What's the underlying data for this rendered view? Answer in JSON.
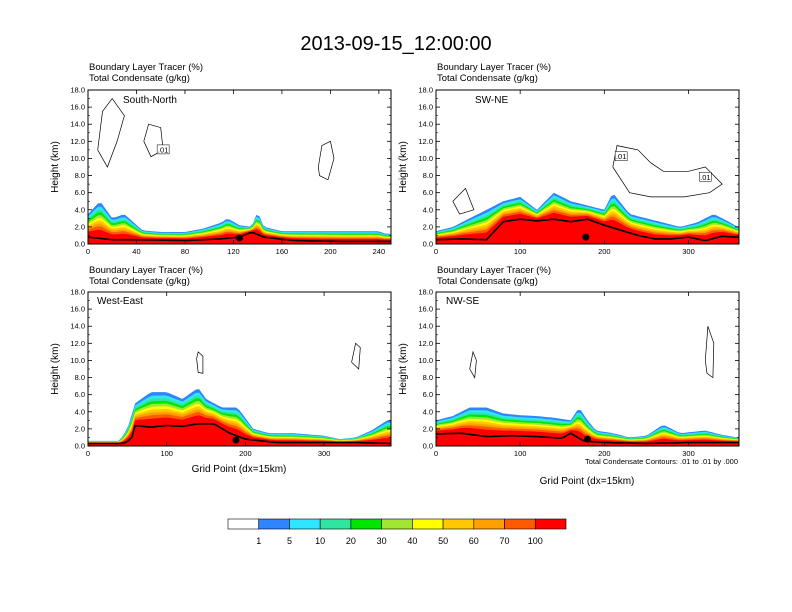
{
  "title": "2013-09-15_12:00:00",
  "field_labels": [
    "Boundary Layer Tracer   (%)",
    "Total Condensate   (g/kg)"
  ],
  "colors": {
    "palette": [
      "#ffffff",
      "#2f84ff",
      "#2ee6ff",
      "#2fe6a0",
      "#00e600",
      "#a0e632",
      "#ffff00",
      "#ffc800",
      "#ffa000",
      "#ff5a00",
      "#ff0000"
    ],
    "contour": "#000000",
    "terrain": "#000000"
  },
  "colorbar": {
    "labels": [
      "1",
      "5",
      "10",
      "20",
      "30",
      "40",
      "50",
      "60",
      "70",
      "100"
    ]
  },
  "contour_note": "Total Condensate Contours: .01 to .01 by .000",
  "chart_data": [
    {
      "type": "heatmap",
      "panel_label": "South-North",
      "ylabel": "Height (km)",
      "xlabel": "",
      "xlim": [
        0,
        250
      ],
      "ylim": [
        0,
        18
      ],
      "xticks": [
        "0",
        "40",
        "80",
        "120",
        "160",
        "200",
        "240"
      ],
      "yticks": [
        "0.0",
        "2.0",
        "4.0",
        "6.0",
        "8.0",
        "10.0",
        "12.0",
        "14.0",
        "16.0",
        "18.0"
      ],
      "contour_labels": [
        ".01"
      ],
      "plume": [
        [
          0,
          3.5
        ],
        [
          10,
          5
        ],
        [
          20,
          3
        ],
        [
          30,
          3.5
        ],
        [
          45,
          1.6
        ],
        [
          60,
          1.4
        ],
        [
          80,
          1.4
        ],
        [
          95,
          1.8
        ],
        [
          110,
          2.5
        ],
        [
          115,
          3
        ],
        [
          125,
          2.2
        ],
        [
          135,
          2
        ],
        [
          140,
          3.8
        ],
        [
          145,
          2
        ],
        [
          160,
          1.5
        ],
        [
          200,
          1.5
        ],
        [
          240,
          1.5
        ],
        [
          245,
          1.2
        ]
      ],
      "terrain": [
        [
          0,
          0.8
        ],
        [
          20,
          0.5
        ],
        [
          40,
          0.5
        ],
        [
          80,
          0.4
        ],
        [
          110,
          0.6
        ],
        [
          125,
          0.8
        ],
        [
          135,
          1.4
        ],
        [
          145,
          0.8
        ],
        [
          170,
          0.4
        ],
        [
          210,
          0.3
        ],
        [
          240,
          0.3
        ],
        [
          248,
          0.3
        ]
      ]
    },
    {
      "type": "heatmap",
      "panel_label": "SW-NE",
      "ylabel": "Height (km)",
      "xlabel": "",
      "xlim": [
        0,
        360
      ],
      "ylim": [
        0,
        18
      ],
      "xticks": [
        "0",
        "100",
        "200",
        "300"
      ],
      "yticks": [
        "0.0",
        "2.0",
        "4.0",
        "6.0",
        "8.0",
        "10.0",
        "12.0",
        "14.0",
        "16.0",
        "18.0"
      ],
      "contour_labels": [
        ".01",
        ".01"
      ],
      "plume": [
        [
          0,
          1.5
        ],
        [
          20,
          2
        ],
        [
          40,
          3
        ],
        [
          60,
          4
        ],
        [
          80,
          5
        ],
        [
          100,
          5.5
        ],
        [
          120,
          4
        ],
        [
          140,
          6
        ],
        [
          160,
          5
        ],
        [
          180,
          4.5
        ],
        [
          200,
          4
        ],
        [
          210,
          6
        ],
        [
          230,
          3.5
        ],
        [
          250,
          3
        ],
        [
          270,
          2.5
        ],
        [
          290,
          2
        ],
        [
          310,
          2.5
        ],
        [
          330,
          3.5
        ],
        [
          350,
          2.5
        ],
        [
          358,
          2
        ]
      ],
      "terrain": [
        [
          0,
          0.5
        ],
        [
          30,
          0.6
        ],
        [
          60,
          0.5
        ],
        [
          80,
          2.6
        ],
        [
          100,
          2.9
        ],
        [
          120,
          2.7
        ],
        [
          140,
          2.9
        ],
        [
          160,
          2.6
        ],
        [
          180,
          2.9
        ],
        [
          200,
          2.2
        ],
        [
          220,
          1.6
        ],
        [
          240,
          1
        ],
        [
          260,
          0.6
        ],
        [
          280,
          0.6
        ],
        [
          300,
          0.8
        ],
        [
          320,
          0.4
        ],
        [
          340,
          0.9
        ],
        [
          358,
          0.8
        ]
      ]
    },
    {
      "type": "heatmap",
      "panel_label": "West-East",
      "ylabel": "Height (km)",
      "xlabel": "Grid Point (dx=15km)",
      "xlim": [
        0,
        385
      ],
      "ylim": [
        0,
        18
      ],
      "xticks": [
        "0",
        "100",
        "200",
        "300"
      ],
      "yticks": [
        "0.0",
        "2.0",
        "4.0",
        "6.0",
        "8.0",
        "10.0",
        "12.0",
        "14.0",
        "16.0",
        "18.0"
      ],
      "contour_labels": [],
      "plume": [
        [
          0,
          0.6
        ],
        [
          40,
          0.6
        ],
        [
          50,
          2
        ],
        [
          60,
          5
        ],
        [
          80,
          6.3
        ],
        [
          100,
          6.3
        ],
        [
          120,
          5.5
        ],
        [
          140,
          6.8
        ],
        [
          150,
          5.5
        ],
        [
          170,
          4.5
        ],
        [
          190,
          4.5
        ],
        [
          210,
          2
        ],
        [
          230,
          1.5
        ],
        [
          260,
          1.5
        ],
        [
          300,
          1.2
        ],
        [
          320,
          0.8
        ],
        [
          340,
          1
        ],
        [
          360,
          1.8
        ],
        [
          380,
          3
        ]
      ],
      "terrain": [
        [
          0,
          0.3
        ],
        [
          45,
          0.3
        ],
        [
          55,
          0.8
        ],
        [
          60,
          2.4
        ],
        [
          80,
          2.2
        ],
        [
          100,
          2.4
        ],
        [
          120,
          2.3
        ],
        [
          140,
          2.6
        ],
        [
          160,
          2.6
        ],
        [
          180,
          1.5
        ],
        [
          200,
          0.8
        ],
        [
          240,
          0.4
        ],
        [
          300,
          0.4
        ],
        [
          340,
          0.4
        ],
        [
          385,
          0.3
        ]
      ]
    },
    {
      "type": "heatmap",
      "panel_label": "NW-SE",
      "ylabel": "Height (km)",
      "xlabel": "Grid Point (dx=15km)",
      "xlim": [
        0,
        360
      ],
      "ylim": [
        0,
        18
      ],
      "xticks": [
        "0",
        "100",
        "200",
        "300"
      ],
      "yticks": [
        "0.0",
        "2.0",
        "4.0",
        "6.0",
        "8.0",
        "10.0",
        "12.0",
        "14.0",
        "16.0",
        "18.0"
      ],
      "contour_labels": [],
      "plume": [
        [
          0,
          3
        ],
        [
          20,
          3.5
        ],
        [
          40,
          4.5
        ],
        [
          60,
          4.5
        ],
        [
          80,
          3.8
        ],
        [
          100,
          3.6
        ],
        [
          120,
          3.5
        ],
        [
          140,
          3.3
        ],
        [
          160,
          3
        ],
        [
          170,
          4.5
        ],
        [
          180,
          3
        ],
        [
          190,
          1.8
        ],
        [
          210,
          1.5
        ],
        [
          230,
          1
        ],
        [
          250,
          1.2
        ],
        [
          270,
          2.5
        ],
        [
          290,
          1.5
        ],
        [
          320,
          1.8
        ],
        [
          340,
          1.3
        ],
        [
          358,
          1
        ]
      ],
      "terrain": [
        [
          0,
          1.4
        ],
        [
          30,
          1.5
        ],
        [
          60,
          1.1
        ],
        [
          90,
          1.2
        ],
        [
          120,
          1.1
        ],
        [
          150,
          0.9
        ],
        [
          160,
          1.5
        ],
        [
          175,
          0.6
        ],
        [
          200,
          0.4
        ],
        [
          250,
          0.3
        ],
        [
          300,
          0.4
        ],
        [
          358,
          0.4
        ]
      ]
    }
  ]
}
